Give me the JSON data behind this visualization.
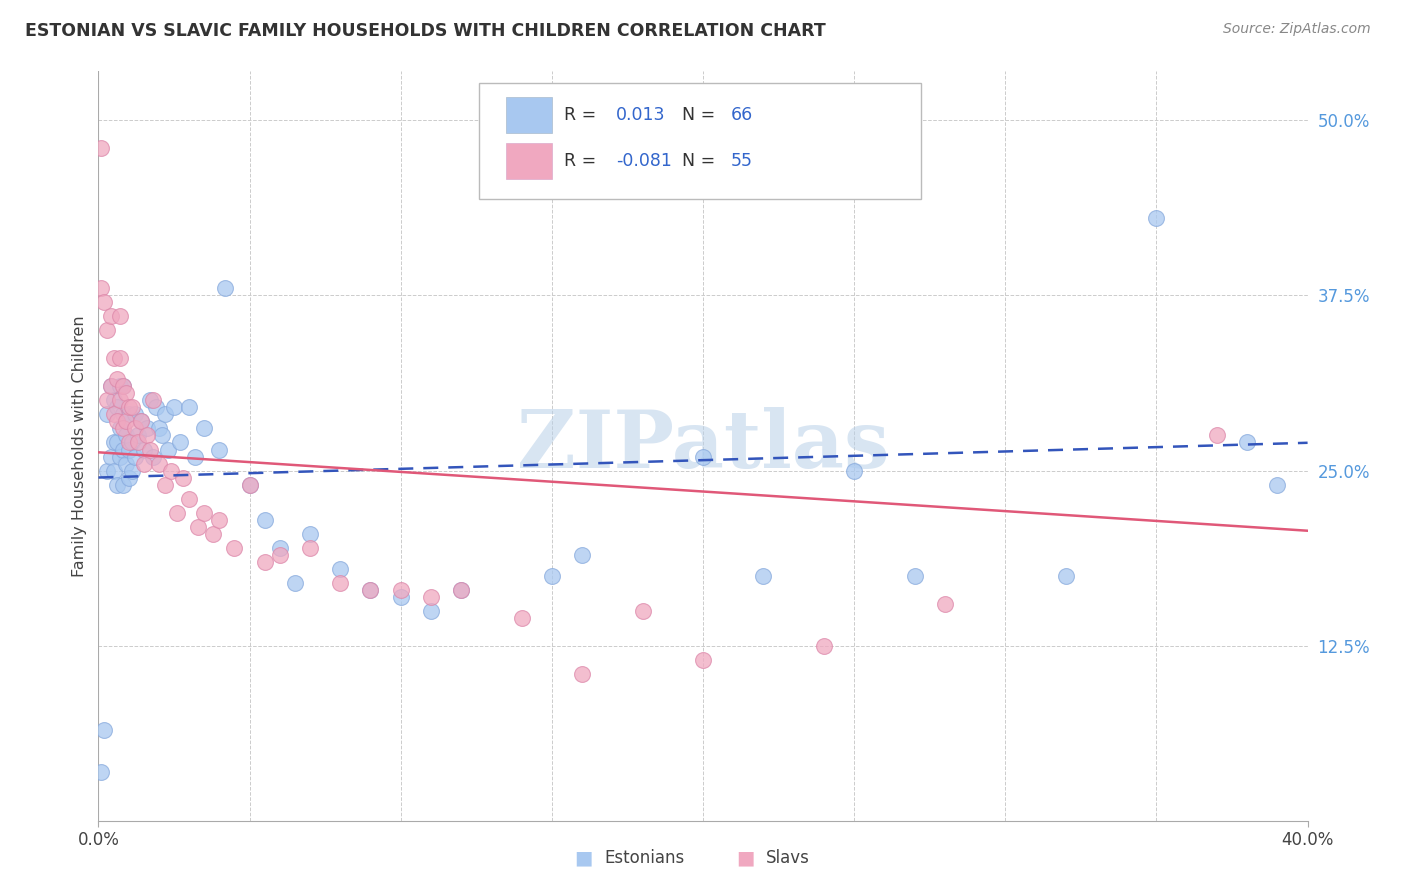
{
  "title": "ESTONIAN VS SLAVIC FAMILY HOUSEHOLDS WITH CHILDREN CORRELATION CHART",
  "source": "Source: ZipAtlas.com",
  "ylabel": "Family Households with Children",
  "ytick_labels": [
    "50.0%",
    "37.5%",
    "25.0%",
    "12.5%"
  ],
  "ytick_values": [
    0.5,
    0.375,
    0.25,
    0.125
  ],
  "xmin": 0.0,
  "xmax": 0.4,
  "ymin": 0.0,
  "ymax": 0.535,
  "watermark": "ZIPatlas",
  "estonian_color": "#a8c8f0",
  "slavic_color": "#f0a8c0",
  "estonian_line_color": "#3355bb",
  "slavic_line_color": "#e05878",
  "background_color": "#ffffff",
  "grid_color": "#cccccc",
  "estonian_x": [
    0.001,
    0.002,
    0.003,
    0.003,
    0.004,
    0.004,
    0.005,
    0.005,
    0.005,
    0.006,
    0.006,
    0.006,
    0.007,
    0.007,
    0.007,
    0.008,
    0.008,
    0.008,
    0.008,
    0.009,
    0.009,
    0.01,
    0.01,
    0.01,
    0.011,
    0.011,
    0.012,
    0.012,
    0.013,
    0.014,
    0.015,
    0.016,
    0.017,
    0.018,
    0.019,
    0.02,
    0.021,
    0.022,
    0.023,
    0.025,
    0.027,
    0.03,
    0.032,
    0.035,
    0.04,
    0.042,
    0.05,
    0.055,
    0.06,
    0.065,
    0.07,
    0.08,
    0.09,
    0.1,
    0.11,
    0.12,
    0.15,
    0.16,
    0.2,
    0.22,
    0.25,
    0.27,
    0.32,
    0.35,
    0.38,
    0.39
  ],
  "estonian_y": [
    0.035,
    0.065,
    0.25,
    0.29,
    0.26,
    0.31,
    0.25,
    0.27,
    0.3,
    0.24,
    0.27,
    0.295,
    0.26,
    0.28,
    0.31,
    0.24,
    0.265,
    0.29,
    0.31,
    0.255,
    0.275,
    0.245,
    0.265,
    0.29,
    0.25,
    0.27,
    0.26,
    0.29,
    0.275,
    0.285,
    0.265,
    0.28,
    0.3,
    0.26,
    0.295,
    0.28,
    0.275,
    0.29,
    0.265,
    0.295,
    0.27,
    0.295,
    0.26,
    0.28,
    0.265,
    0.38,
    0.24,
    0.215,
    0.195,
    0.17,
    0.205,
    0.18,
    0.165,
    0.16,
    0.15,
    0.165,
    0.175,
    0.19,
    0.26,
    0.175,
    0.25,
    0.175,
    0.175,
    0.43,
    0.27,
    0.24
  ],
  "slavic_x": [
    0.001,
    0.001,
    0.002,
    0.003,
    0.003,
    0.004,
    0.004,
    0.005,
    0.005,
    0.006,
    0.006,
    0.007,
    0.007,
    0.007,
    0.008,
    0.008,
    0.009,
    0.009,
    0.01,
    0.01,
    0.011,
    0.012,
    0.013,
    0.014,
    0.015,
    0.016,
    0.017,
    0.018,
    0.02,
    0.022,
    0.024,
    0.026,
    0.028,
    0.03,
    0.033,
    0.035,
    0.038,
    0.04,
    0.045,
    0.05,
    0.055,
    0.06,
    0.07,
    0.08,
    0.09,
    0.1,
    0.11,
    0.12,
    0.14,
    0.16,
    0.18,
    0.2,
    0.24,
    0.28,
    0.37
  ],
  "slavic_y": [
    0.48,
    0.38,
    0.37,
    0.3,
    0.35,
    0.31,
    0.36,
    0.29,
    0.33,
    0.285,
    0.315,
    0.3,
    0.33,
    0.36,
    0.28,
    0.31,
    0.285,
    0.305,
    0.27,
    0.295,
    0.295,
    0.28,
    0.27,
    0.285,
    0.255,
    0.275,
    0.265,
    0.3,
    0.255,
    0.24,
    0.25,
    0.22,
    0.245,
    0.23,
    0.21,
    0.22,
    0.205,
    0.215,
    0.195,
    0.24,
    0.185,
    0.19,
    0.195,
    0.17,
    0.165,
    0.165,
    0.16,
    0.165,
    0.145,
    0.105,
    0.15,
    0.115,
    0.125,
    0.155,
    0.275
  ]
}
